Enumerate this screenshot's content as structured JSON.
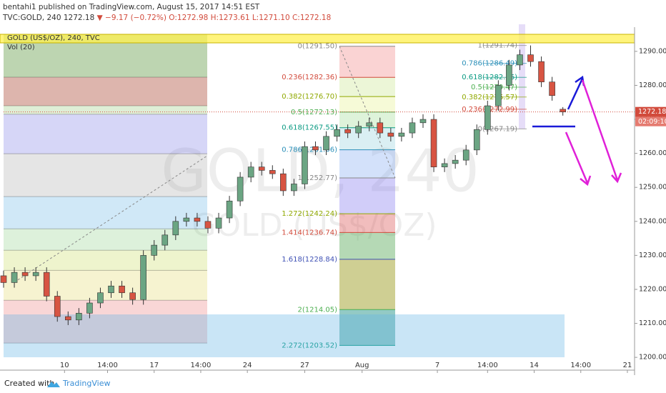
{
  "header": {
    "published": "bentahi1 published on TradingView.com, August 15, 2017 14:51 EST",
    "symbol": "TVC:GOLD, 240",
    "last": "1272.18",
    "change": "▼ −9.17 (−0.72%)",
    "ohlc": "O:1272.98 H:1273.61 L:1271.10 C:1272.18"
  },
  "footer": {
    "created": "Created with",
    "brand": "TradingView"
  },
  "chart_data": {
    "type": "candlestick",
    "legend_title": "GOLD (US$/OZ), 240, TVC",
    "indicator": "Vol (20)",
    "watermark": "GOLD, 240",
    "watermark_sub": "GOLD (US$/OZ)",
    "up_color": "#6ba583",
    "down_color": "#d75442",
    "x": [
      0,
      3,
      6,
      9,
      12,
      15,
      18,
      21,
      24,
      27,
      30,
      33,
      36,
      39,
      42,
      45,
      48,
      51,
      54,
      57,
      60,
      63,
      66,
      69,
      72,
      75,
      78,
      81,
      84,
      87,
      90,
      93,
      96,
      99,
      102,
      105,
      108,
      111,
      114,
      117,
      120,
      123,
      126,
      129,
      132,
      135,
      138,
      141,
      144,
      147,
      150,
      153,
      156
    ],
    "open": [
      1224,
      1222,
      1225,
      1224,
      1225,
      1218,
      1212,
      1211,
      1213,
      1216,
      1219,
      1221,
      1219,
      1217,
      1230,
      1233,
      1236,
      1240,
      1241,
      1240,
      1238,
      1241,
      1246,
      1253,
      1256,
      1255,
      1254,
      1249,
      1251,
      1262,
      1261,
      1265,
      1267,
      1266,
      1268,
      1269,
      1266,
      1265,
      1266,
      1269,
      1270,
      1256,
      1257,
      1258,
      1261,
      1267,
      1274,
      1280,
      1286,
      1289,
      1287,
      1281,
      1272.98
    ],
    "high": [
      1225.5,
      1226.5,
      1226.5,
      1226.5,
      1226.5,
      1219.5,
      1213.5,
      1214.5,
      1217.5,
      1220.5,
      1222.5,
      1222.5,
      1220.5,
      1231.5,
      1234.5,
      1237.5,
      1241.5,
      1242.5,
      1242.5,
      1241.5,
      1242.5,
      1247.5,
      1254.5,
      1257.5,
      1257.5,
      1256.5,
      1255.5,
      1252.5,
      1263.5,
      1263.5,
      1266.5,
      1268.5,
      1268.5,
      1269.5,
      1270.5,
      1270.5,
      1267.5,
      1267.5,
      1270.5,
      1271.5,
      1271.5,
      1258.5,
      1259.5,
      1262.5,
      1268.5,
      1275.5,
      1281.5,
      1287.5,
      1290.5,
      1291.74,
      1288.5,
      1282.5,
      1273.61
    ],
    "low": [
      1220.5,
      1220.5,
      1222.5,
      1222.5,
      1216.5,
      1210.5,
      1209.5,
      1209.5,
      1211.5,
      1214.5,
      1217.5,
      1217.5,
      1215.5,
      1215.5,
      1228.5,
      1231.5,
      1234.5,
      1238.5,
      1238.5,
      1236.5,
      1236.5,
      1239.5,
      1244.5,
      1251.5,
      1253.5,
      1252.5,
      1247.5,
      1247.5,
      1249.5,
      1259.5,
      1259.5,
      1263.5,
      1264.5,
      1264.5,
      1266.5,
      1264.5,
      1263.5,
      1263.5,
      1264.5,
      1267.5,
      1254.5,
      1254.5,
      1255.5,
      1256.5,
      1259.5,
      1265.5,
      1272.5,
      1278.5,
      1284.5,
      1285.5,
      1279.5,
      1275.5,
      1271.1
    ],
    "close": [
      1222,
      1225,
      1224,
      1225,
      1218,
      1212,
      1211,
      1213,
      1216,
      1219,
      1221,
      1219,
      1217,
      1230,
      1233,
      1236,
      1240,
      1241,
      1240,
      1238,
      1241,
      1246,
      1253,
      1256,
      1255,
      1254,
      1249,
      1251,
      1262,
      1261,
      1265,
      1267,
      1266,
      1268,
      1269,
      1266,
      1265,
      1266,
      1269,
      1270,
      1256,
      1257,
      1258,
      1261,
      1267,
      1274,
      1280,
      1286,
      1289,
      1287,
      1281,
      1277,
      1272.18
    ],
    "current_price": 1272.18,
    "countdown": "02:09:10",
    "xlim": [
      0,
      176
    ],
    "xticks": [
      {
        "value": 17,
        "label": "10"
      },
      {
        "value": 29,
        "label": "14:00"
      },
      {
        "value": 42,
        "label": "17"
      },
      {
        "value": 55,
        "label": "14:00"
      },
      {
        "value": 68,
        "label": "24"
      },
      {
        "value": 84,
        "label": "27"
      },
      {
        "value": 100,
        "label": "Aug"
      },
      {
        "value": 121,
        "label": "7"
      },
      {
        "value": 135,
        "label": "14:00"
      },
      {
        "value": 148,
        "label": "14"
      },
      {
        "value": 161,
        "label": "14:00"
      },
      {
        "value": 174,
        "label": "21"
      }
    ],
    "ylim": [
      1199.4,
      1296.7
    ],
    "yticks": [
      {
        "value": 1200,
        "label": "1200.00"
      },
      {
        "value": 1210,
        "label": "1210.00"
      },
      {
        "value": 1220,
        "label": "1220.00"
      },
      {
        "value": 1230,
        "label": "1230.00"
      },
      {
        "value": 1240,
        "label": "1240.00"
      },
      {
        "value": 1250,
        "label": "1250.00"
      },
      {
        "value": 1260,
        "label": "1260.00"
      },
      {
        "value": 1270,
        "label": "1270.00"
      },
      {
        "value": 1280,
        "label": "1280.00"
      },
      {
        "value": 1290,
        "label": "1290.00"
      }
    ],
    "left_fib": {
      "levels": [
        1295,
        1282.4,
        1274,
        1271.5,
        1259.9,
        1247.3,
        1237.8,
        1231.5,
        1225.6,
        1216.8,
        1204.2
      ],
      "colors": [
        "rgba(90,150,60,0.4)",
        "rgba(170,70,50,0.4)",
        "rgba(150,200,120,0.3)",
        "rgba(120,120,230,0.3)",
        "rgba(170,170,170,0.3)",
        "rgba(100,180,230,0.3)",
        "rgba(120,200,110,0.25)",
        "rgba(200,220,90,0.3)",
        "rgba(230,220,120,0.35)",
        "rgba(235,120,120,0.3)"
      ]
    },
    "mid_fib": {
      "levels": [
        {
          "value": 1291.5,
          "label": "0(1291.50)"
        },
        {
          "value": 1282.36,
          "label": "0.236(1282.36)"
        },
        {
          "value": 1276.7,
          "label": "0.382(1276.70)"
        },
        {
          "value": 1272.13,
          "label": "0.5(1272.13)"
        },
        {
          "value": 1267.55,
          "label": "0.618(1267.55)"
        },
        {
          "value": 1261.06,
          "label": "0.786(1261.06)"
        },
        {
          "value": 1252.77,
          "label": "1(1252.77)"
        },
        {
          "value": 1242.24,
          "label": "1.272(1242.24)"
        },
        {
          "value": 1236.74,
          "label": "1.414(1236.74)"
        },
        {
          "value": 1228.84,
          "label": "1.618(1228.84)"
        },
        {
          "value": 1214.05,
          "label": "2(1214.05)"
        },
        {
          "value": 1203.52,
          "label": "2.272(1203.52)"
        }
      ],
      "line_colors": [
        "#888888",
        "#d24b3c",
        "#8fa800",
        "#4caf50",
        "#089981",
        "#2a8fb8",
        "#888888",
        "#8fa800",
        "#d24b3c",
        "#3f51b5",
        "#4caf50",
        "#089981"
      ],
      "colors": [
        "rgba(240,130,130,0.35)",
        "rgba(200,230,140,0.35)",
        "rgba(230,240,140,0.35)",
        "rgba(160,220,150,0.35)",
        "rgba(150,210,220,0.35)",
        "rgba(130,170,240,0.35)",
        "rgba(140,130,240,0.4)",
        "rgba(220,90,90,0.4)",
        "rgba(90,170,90,0.45)",
        "rgba(160,160,40,0.5)",
        "rgba(40,150,140,0.5)"
      ]
    },
    "right_fib": {
      "levels": [
        {
          "value": 1291.74,
          "label": "1(1291.74)"
        },
        {
          "value": 1286.49,
          "label": "0.786(1286.49)"
        },
        {
          "value": 1282.36,
          "label": "0.618(1282.36)"
        },
        {
          "value": 1279.47,
          "label": "0.5(1279.47)"
        },
        {
          "value": 1276.57,
          "label": "0.382(1276.57)"
        },
        {
          "value": 1272.99,
          "label": "0.236(1272.99)"
        },
        {
          "value": 1267.19,
          "label": "0(1267.19)"
        }
      ],
      "line_colors": [
        "#888888",
        "#2a8fb8",
        "#089981",
        "#4caf50",
        "#8fa800",
        "#d24b3c",
        "#888888"
      ]
    }
  }
}
